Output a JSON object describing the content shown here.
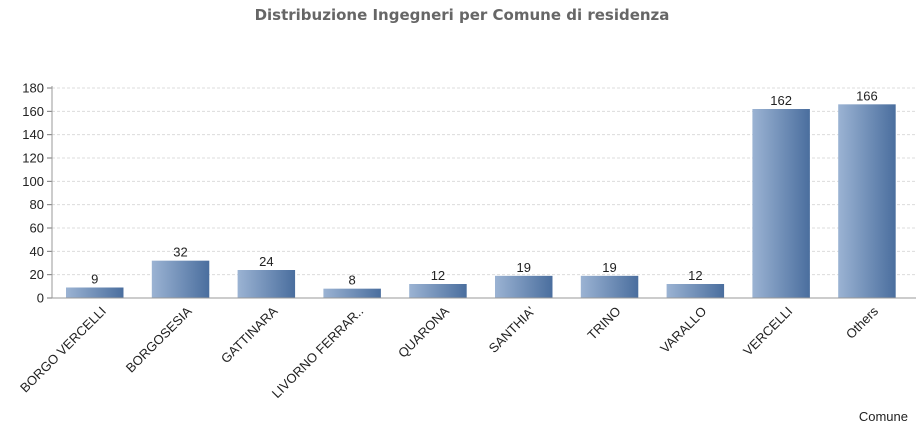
{
  "chart_data": {
    "type": "bar",
    "title": "Distribuzione Ingegneri per Comune di residenza",
    "xlabel": "Comune",
    "ylabel": "",
    "categories": [
      "BORGO VERCELLI",
      "BORGOSESIA",
      "GATTINARA",
      "LIVORNO FERRAR..",
      "QUARONA",
      "SANTHIA'",
      "TRINO",
      "VARALLO",
      "VERCELLI",
      "Others"
    ],
    "values": [
      9,
      32,
      24,
      8,
      12,
      19,
      19,
      12,
      162,
      166
    ],
    "ylim": [
      0,
      180
    ],
    "yticks": [
      0,
      20,
      40,
      60,
      80,
      100,
      120,
      140,
      160,
      180
    ],
    "grid": true,
    "data_labels": true,
    "bar_gradient": [
      "#9bb3d3",
      "#4a6e9e"
    ]
  }
}
